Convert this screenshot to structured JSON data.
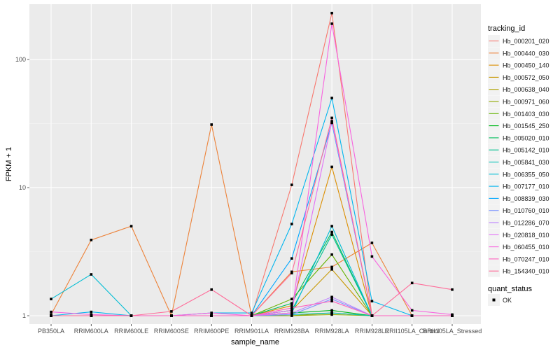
{
  "chart_data": {
    "type": "line",
    "xlabel": "sample_name",
    "ylabel": "FPKM + 1",
    "y_scale": "log10",
    "ylim": [
      0.86,
      270
    ],
    "y_ticks": [
      {
        "value": 1,
        "label": "1"
      },
      {
        "value": 10,
        "label": "10"
      },
      {
        "value": 100,
        "label": "100"
      }
    ],
    "grid": true,
    "background": "#ebebeb",
    "categories": [
      "PB350LA",
      "RRIM600LA",
      "RRIM600LE",
      "RRIM600SE",
      "RRIM600PE",
      "RRIM901LA",
      "RRIM928BA",
      "RRIM928LA",
      "RRIM928LE",
      "RRII105LA_Control",
      "RRII105LA_Stressed"
    ],
    "legend": {
      "position": "right",
      "title": "tracking_id",
      "shape_title": "quant_status",
      "shape_label": "OK"
    },
    "series": [
      {
        "name": "Hb_000201_020",
        "color": "#F8766D",
        "values": [
          1,
          1,
          1,
          1,
          1,
          1,
          10.5,
          230,
          1,
          1,
          1
        ]
      },
      {
        "name": "Hb_000440_030",
        "color": "#EC8239",
        "values": [
          1.02,
          3.9,
          5.0,
          1.0,
          31,
          1.0,
          2.2,
          2.4,
          3.7,
          1,
          1
        ]
      },
      {
        "name": "Hb_000450_140",
        "color": "#DB8E00",
        "values": [
          1,
          1,
          1,
          1,
          1,
          1,
          1.2,
          14.5,
          1,
          1,
          1
        ]
      },
      {
        "name": "Hb_000572_050",
        "color": "#C79800",
        "values": [
          1,
          1,
          1,
          1,
          1,
          1,
          1.1,
          2.3,
          1,
          1,
          1
        ]
      },
      {
        "name": "Hb_000638_040",
        "color": "#AEA200",
        "values": [
          1,
          1,
          1,
          1,
          1,
          1,
          1.0,
          1.05,
          1,
          1,
          1
        ]
      },
      {
        "name": "Hb_000971_060",
        "color": "#8FAA00",
        "values": [
          1,
          1,
          1,
          1,
          1,
          1,
          1.0,
          1.02,
          1,
          1,
          1
        ]
      },
      {
        "name": "Hb_001403_030",
        "color": "#64B200",
        "values": [
          1,
          1,
          1,
          1,
          1,
          1,
          1.35,
          3.0,
          1,
          1,
          1
        ]
      },
      {
        "name": "Hb_001545_250",
        "color": "#00B81B",
        "values": [
          1,
          1,
          1,
          1,
          1,
          1,
          1.05,
          1.1,
          1,
          1,
          1
        ]
      },
      {
        "name": "Hb_005020_010",
        "color": "#00BD5C",
        "values": [
          1,
          1,
          1,
          1,
          1,
          1,
          1.25,
          4.5,
          1,
          1,
          1
        ]
      },
      {
        "name": "Hb_005142_010",
        "color": "#00C08E",
        "values": [
          1,
          1,
          1,
          1,
          1,
          1,
          1.1,
          4.3,
          1,
          1,
          1
        ]
      },
      {
        "name": "Hb_005841_030",
        "color": "#00C1B7",
        "values": [
          1,
          1,
          1,
          1,
          1,
          1,
          1.02,
          1.05,
          1,
          1,
          1
        ]
      },
      {
        "name": "Hb_006355_050",
        "color": "#00BDD4",
        "values": [
          1.35,
          2.1,
          1,
          1,
          1,
          1,
          1.05,
          5.0,
          1,
          1,
          1
        ]
      },
      {
        "name": "Hb_007177_010",
        "color": "#00B5EE",
        "values": [
          1,
          1.07,
          1,
          1,
          1.05,
          1.05,
          5.2,
          50,
          1.3,
          1,
          1
        ]
      },
      {
        "name": "Hb_008839_030",
        "color": "#00A7FF",
        "values": [
          1,
          1,
          1,
          1,
          1,
          1,
          2.8,
          32,
          1,
          1,
          1
        ]
      },
      {
        "name": "Hb_010760_010",
        "color": "#7F96FF",
        "values": [
          1,
          1,
          1,
          1,
          1,
          1,
          1.02,
          1.35,
          1,
          1,
          1
        ]
      },
      {
        "name": "Hb_012286_070",
        "color": "#BC81FF",
        "values": [
          1,
          1,
          1,
          1,
          1,
          1,
          1.05,
          1.4,
          1,
          1,
          1
        ]
      },
      {
        "name": "Hb_020818_010",
        "color": "#E26EF7",
        "values": [
          1,
          1,
          1,
          1,
          1,
          1,
          1.1,
          33,
          1,
          1,
          1
        ]
      },
      {
        "name": "Hb_060455_010",
        "color": "#F863DF",
        "values": [
          1.07,
          1.02,
          1,
          1,
          1.05,
          1,
          1.05,
          190,
          2.9,
          1.1,
          1.02
        ]
      },
      {
        "name": "Hb_070247_010",
        "color": "#FF62BF",
        "values": [
          1,
          1,
          1,
          1,
          1,
          1,
          1.15,
          1.3,
          1,
          1,
          1
        ]
      },
      {
        "name": "Hb_154340_010",
        "color": "#FF6A98",
        "values": [
          1,
          1,
          1,
          1.08,
          1.6,
          1,
          2.15,
          35,
          1,
          1.8,
          1.6
        ]
      }
    ]
  }
}
